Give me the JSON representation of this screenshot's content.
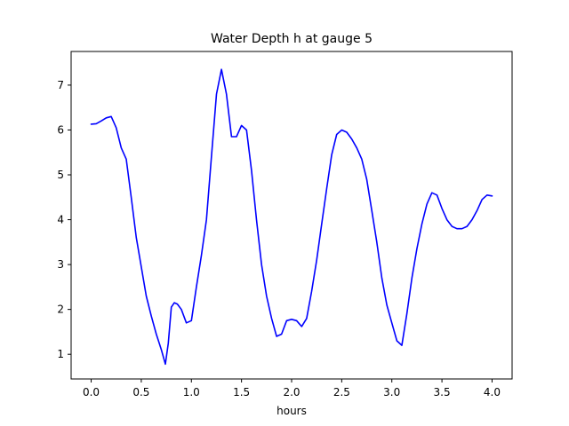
{
  "chart_data": {
    "type": "line",
    "title": "Water Depth h at gauge 5",
    "xlabel": "hours",
    "ylabel": "",
    "xlim": [
      -0.2,
      4.2
    ],
    "ylim": [
      0.45,
      7.75
    ],
    "x_ticks": [
      0.0,
      0.5,
      1.0,
      1.5,
      2.0,
      2.5,
      3.0,
      3.5,
      4.0
    ],
    "x_tick_labels": [
      "0.0",
      "0.5",
      "1.0",
      "1.5",
      "2.0",
      "2.5",
      "3.0",
      "3.5",
      "4.0"
    ],
    "y_ticks": [
      1,
      2,
      3,
      4,
      5,
      6,
      7
    ],
    "y_tick_labels": [
      "1",
      "2",
      "3",
      "4",
      "5",
      "6",
      "7"
    ],
    "grid": false,
    "series": [
      {
        "color": "#0000ff",
        "x": [
          0.0,
          0.05,
          0.1,
          0.15,
          0.2,
          0.25,
          0.3,
          0.35,
          0.4,
          0.45,
          0.5,
          0.55,
          0.6,
          0.65,
          0.7,
          0.74,
          0.77,
          0.8,
          0.83,
          0.86,
          0.9,
          0.95,
          1.0,
          1.05,
          1.1,
          1.15,
          1.2,
          1.25,
          1.3,
          1.35,
          1.4,
          1.45,
          1.5,
          1.55,
          1.6,
          1.65,
          1.7,
          1.75,
          1.8,
          1.85,
          1.9,
          1.95,
          2.0,
          2.05,
          2.1,
          2.15,
          2.2,
          2.25,
          2.3,
          2.35,
          2.4,
          2.45,
          2.5,
          2.55,
          2.6,
          2.65,
          2.7,
          2.75,
          2.8,
          2.85,
          2.9,
          2.95,
          3.0,
          3.05,
          3.1,
          3.15,
          3.2,
          3.25,
          3.3,
          3.35,
          3.4,
          3.45,
          3.5,
          3.55,
          3.6,
          3.65,
          3.7,
          3.75,
          3.8,
          3.85,
          3.9,
          3.95,
          4.0
        ],
        "y": [
          6.13,
          6.14,
          6.2,
          6.27,
          6.3,
          6.05,
          5.6,
          5.35,
          4.5,
          3.6,
          2.95,
          2.3,
          1.85,
          1.45,
          1.1,
          0.78,
          1.25,
          2.05,
          2.15,
          2.12,
          2.0,
          1.7,
          1.75,
          2.5,
          3.2,
          4.0,
          5.4,
          6.8,
          7.35,
          6.8,
          5.85,
          5.85,
          6.1,
          6.0,
          5.1,
          4.0,
          3.0,
          2.3,
          1.8,
          1.4,
          1.45,
          1.75,
          1.78,
          1.75,
          1.62,
          1.8,
          2.4,
          3.1,
          3.9,
          4.7,
          5.45,
          5.9,
          6.0,
          5.95,
          5.8,
          5.6,
          5.35,
          4.9,
          4.2,
          3.5,
          2.7,
          2.1,
          1.7,
          1.3,
          1.2,
          1.9,
          2.7,
          3.35,
          3.9,
          4.35,
          4.6,
          4.55,
          4.25,
          4.0,
          3.85,
          3.8,
          3.8,
          3.85,
          4.0,
          4.2,
          4.45,
          4.55,
          4.53
        ]
      }
    ]
  }
}
